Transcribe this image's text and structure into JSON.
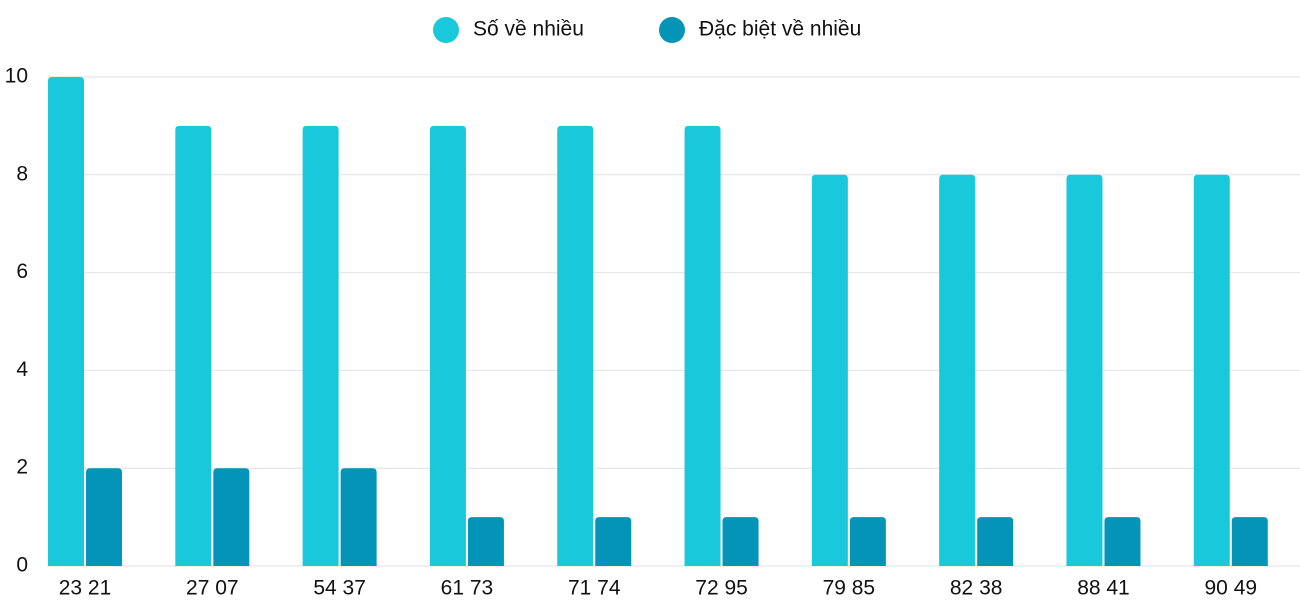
{
  "chart_data": {
    "type": "bar",
    "categories": [
      "23 21",
      "27 07",
      "54 37",
      "61 73",
      "71 74",
      "72 95",
      "79 85",
      "82 38",
      "88 41",
      "90 49"
    ],
    "series": [
      {
        "name": "Số về nhiều",
        "color": "#1ac8db",
        "values": [
          10,
          9,
          9,
          9,
          9,
          9,
          8,
          8,
          8,
          8
        ]
      },
      {
        "name": "Đặc biệt về nhiều",
        "color": "#0394b8",
        "values": [
          2,
          2,
          2,
          1,
          1,
          1,
          1,
          1,
          1,
          1
        ]
      }
    ],
    "ylim": [
      0,
      10
    ],
    "yticks": [
      0,
      2,
      4,
      6,
      8,
      10
    ],
    "grid": true,
    "legend": "top"
  }
}
